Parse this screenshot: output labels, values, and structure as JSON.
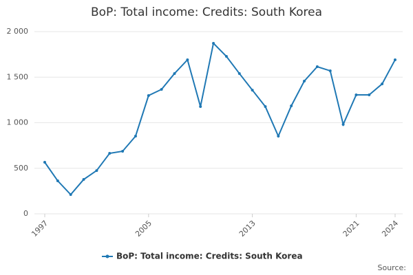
{
  "chart_data": {
    "type": "line",
    "title": "BoP: Total income: Credits: South Korea",
    "source": "Source:",
    "x": [
      1997,
      1998,
      1999,
      2000,
      2001,
      2002,
      2003,
      2004,
      2005,
      2006,
      2007,
      2008,
      2009,
      2010,
      2011,
      2012,
      2013,
      2014,
      2015,
      2016,
      2017,
      2018,
      2019,
      2020,
      2021,
      2022,
      2023,
      2024
    ],
    "series": [
      {
        "name": "BoP: Total income: Credits: South Korea",
        "color": "#1f78b4",
        "values": [
          566,
          362,
          211,
          377,
          475,
          664,
          687,
          853,
          1298,
          1366,
          1540,
          1691,
          1177,
          1872,
          1728,
          1540,
          1358,
          1177,
          853,
          1185,
          1457,
          1615,
          1570,
          981,
          1306,
          1306,
          1426,
          1691
        ]
      }
    ],
    "xlim": [
      1997,
      2024
    ],
    "xticks": [
      1997,
      2005,
      2013,
      2021,
      2024
    ],
    "ylim": [
      0,
      2000
    ],
    "yticks": [
      0,
      500,
      {
        "value": 1000,
        "label": "1 000"
      },
      {
        "value": 1500,
        "label": "1 500"
      },
      {
        "value": 2000,
        "label": "2 000"
      }
    ],
    "grid": true
  }
}
